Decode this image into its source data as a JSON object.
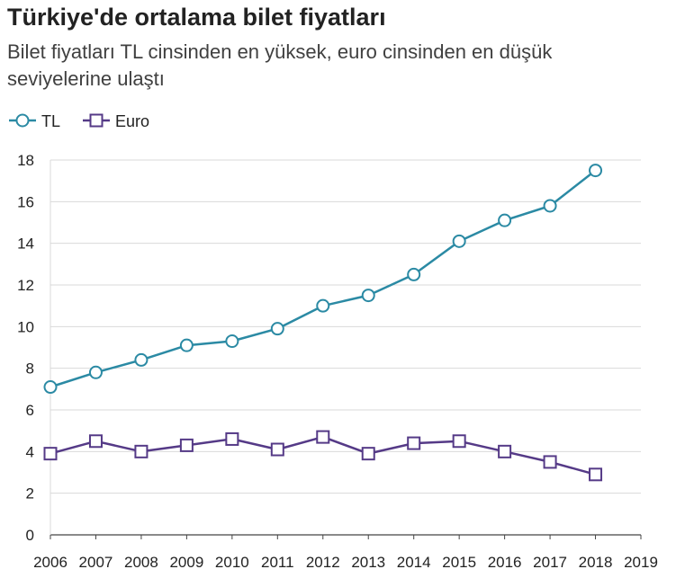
{
  "title": "Türkiye'de ortalama bilet fiyatları",
  "subtitle": "Bilet fiyatları TL cinsinden en yüksek, euro cinsinden en düşük seviyelerine ulaştı",
  "chart_data": {
    "type": "line",
    "title": "Türkiye'de ortalama bilet fiyatları",
    "subtitle": "Bilet fiyatları TL cinsinden en yüksek, euro cinsinden en düşük seviyelerine ulaştı",
    "xlabel": "",
    "ylabel": "",
    "x": [
      2006,
      2007,
      2008,
      2009,
      2010,
      2011,
      2012,
      2013,
      2014,
      2015,
      2016,
      2017,
      2018
    ],
    "x_ticks": [
      "2006",
      "2007",
      "2008",
      "2009",
      "2010",
      "2011",
      "2012",
      "2013",
      "2014",
      "2015",
      "2016",
      "2017",
      "2018",
      "2019"
    ],
    "xlim": [
      2006,
      2019
    ],
    "y_ticks": [
      "0",
      "2",
      "4",
      "6",
      "8",
      "10",
      "12",
      "14",
      "16",
      "18"
    ],
    "ylim": [
      0,
      18
    ],
    "grid": true,
    "legend_position": "top-left",
    "series": [
      {
        "name": "TL",
        "marker": "circle",
        "color": "#2b8aa4",
        "values": [
          7.1,
          7.8,
          8.4,
          9.1,
          9.3,
          9.9,
          11.0,
          11.5,
          12.5,
          14.1,
          15.1,
          15.8,
          17.5
        ]
      },
      {
        "name": "Euro",
        "marker": "square",
        "color": "#553a87",
        "values": [
          3.9,
          4.5,
          4.0,
          4.3,
          4.6,
          4.1,
          4.7,
          3.9,
          4.4,
          4.5,
          4.0,
          3.5,
          2.9
        ]
      }
    ]
  }
}
